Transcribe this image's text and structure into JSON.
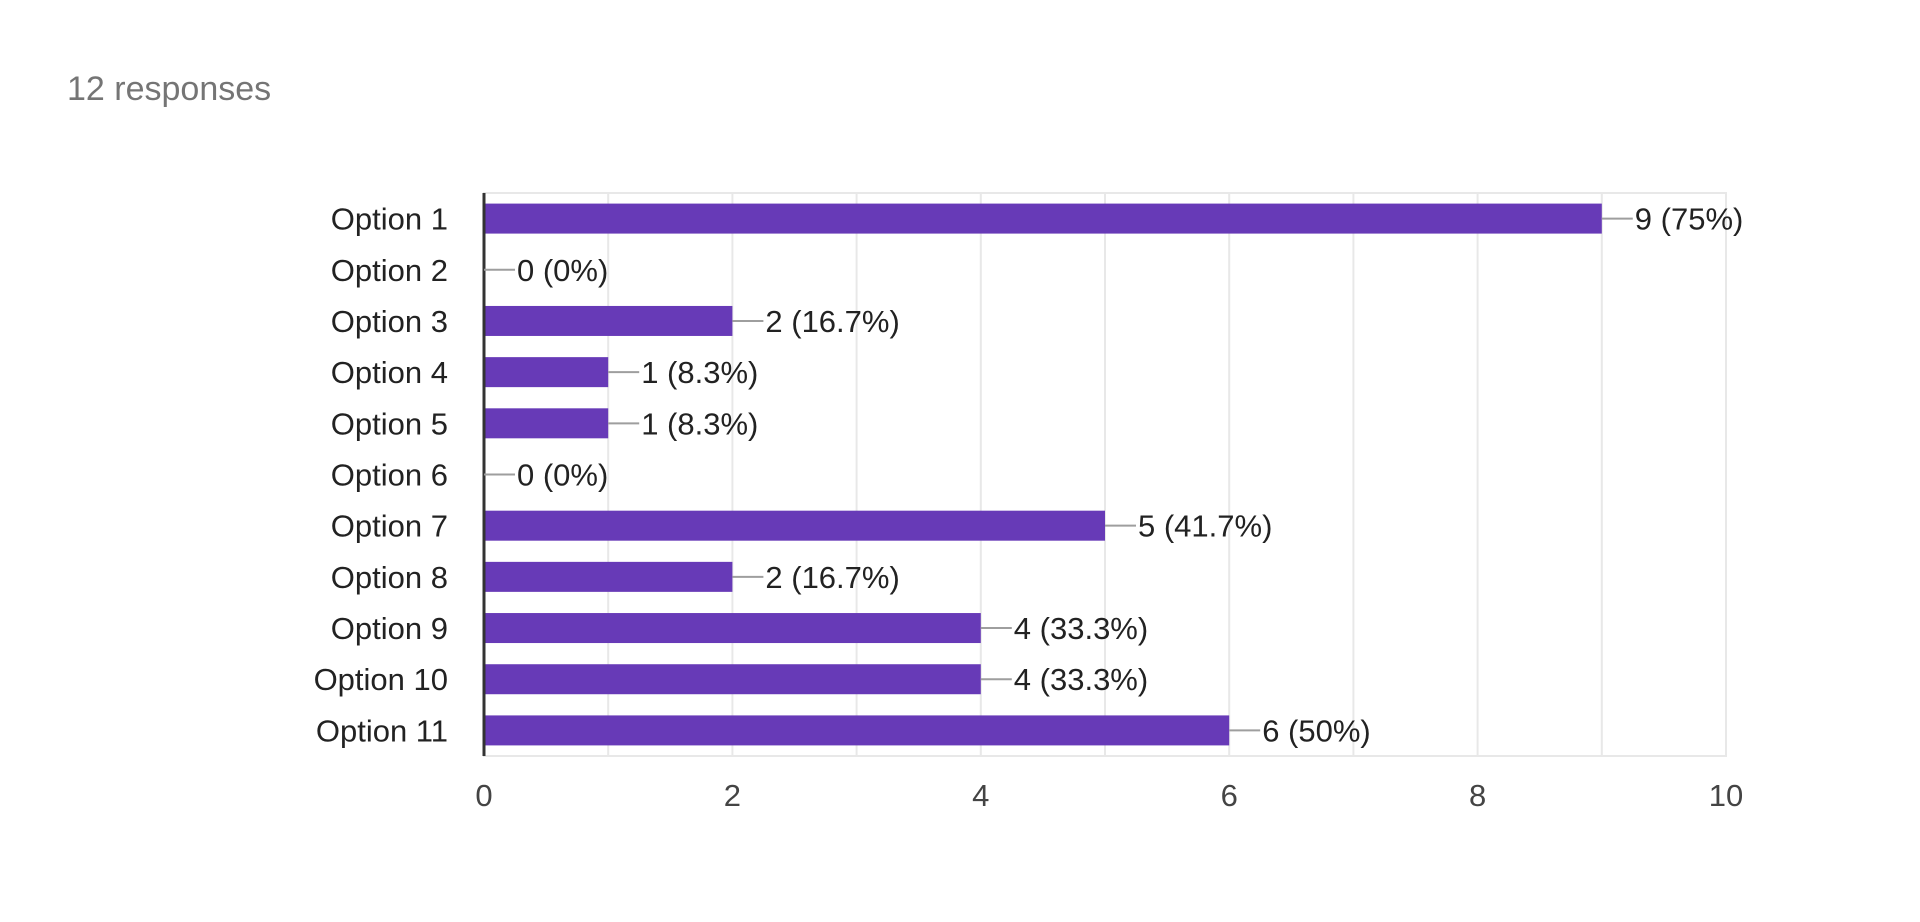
{
  "summary": {
    "responses_text": "12 responses"
  },
  "colors": {
    "bar": "#673ab7",
    "grid": "#e8e8e8",
    "axis": "#333333",
    "leader": "#9e9e9e",
    "text": "#222222",
    "tick_text": "#444444"
  },
  "chart_data": {
    "type": "bar",
    "orientation": "horizontal",
    "categories": [
      "Option 1",
      "Option 2",
      "Option 3",
      "Option 4",
      "Option 5",
      "Option 6",
      "Option 7",
      "Option 8",
      "Option 9",
      "Option 10",
      "Option 11"
    ],
    "values": [
      9,
      0,
      2,
      1,
      1,
      0,
      5,
      2,
      4,
      4,
      6
    ],
    "value_labels": [
      "9 (75%)",
      "0 (0%)",
      "2 (16.7%)",
      "1 (8.3%)",
      "1 (8.3%)",
      "0 (0%)",
      "5 (41.7%)",
      "2 (16.7%)",
      "4 (33.3%)",
      "4 (33.3%)",
      "6 (50%)"
    ],
    "xlim": [
      0,
      10
    ],
    "xticks": [
      "0",
      "2",
      "4",
      "6",
      "8",
      "10"
    ],
    "grid": true,
    "title": "",
    "xlabel": "",
    "ylabel": ""
  }
}
